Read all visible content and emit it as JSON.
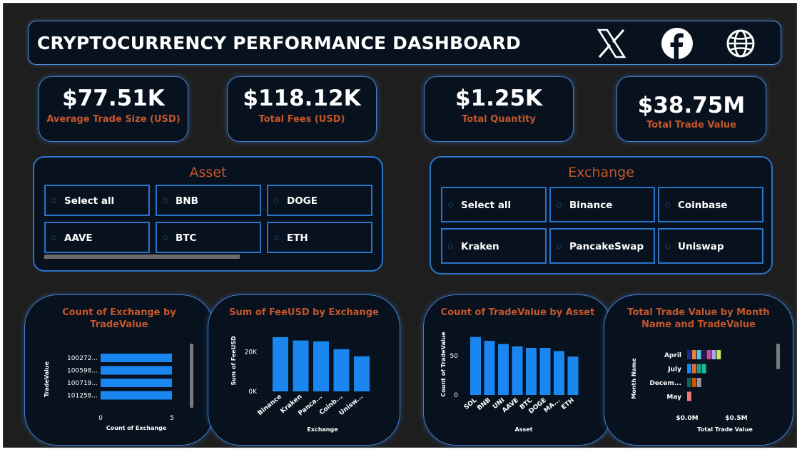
{
  "header": {
    "title": "CRYPTOCURRENCY PERFORMANCE DASHBOARD",
    "social_icons": [
      "x-icon",
      "facebook-icon",
      "globe-icon"
    ]
  },
  "kpis": [
    {
      "value": "$77.51K",
      "label": "Average Trade Size (USD)"
    },
    {
      "value": "$118.12K",
      "label": "Total Fees (USD)"
    },
    {
      "value": "$1.25K",
      "label": "Total Quantity"
    },
    {
      "value": "$38.75M",
      "label": "Total Trade Value"
    }
  ],
  "asset_slicer": {
    "title": "Asset",
    "options": [
      "Select all",
      "BNB",
      "DOGE",
      "AAVE",
      "BTC",
      "ETH"
    ]
  },
  "exchange_slicer": {
    "title": "Exchange",
    "options": [
      "Select all",
      "Binance",
      "Coinbase",
      "Kraken",
      "PancakeSwap",
      "Uniswap"
    ]
  },
  "colors": {
    "background": "#1e1e1e",
    "panel": "#07121e",
    "border": "#3f7fd6",
    "accent": "#c5562a",
    "bar": "#1a86f0"
  },
  "chart_data": [
    {
      "type": "bar",
      "orientation": "horizontal",
      "title": "Count of Exchange by TradeValue",
      "xlabel": "Count of Exchange",
      "ylabel": "TradeValue",
      "categories": [
        "100272...",
        "100598...",
        "100719...",
        "101258..."
      ],
      "values": [
        5,
        5,
        5,
        5
      ],
      "xlim": [
        0,
        5
      ],
      "x_ticks": [
        "0",
        "5"
      ]
    },
    {
      "type": "bar",
      "title": "Sum of FeeUSD by Exchange",
      "xlabel": "Exchange",
      "ylabel": "Sum of FeeUSD",
      "categories": [
        "Binance",
        "Kraken",
        "Panca...",
        "Coinb...",
        "Unisw..."
      ],
      "values": [
        27500,
        25800,
        25400,
        21400,
        17800
      ],
      "ylim": [
        0,
        30000
      ],
      "y_ticks": [
        {
          "value": 0,
          "label": "0K"
        },
        {
          "value": 20000,
          "label": "20K"
        }
      ]
    },
    {
      "type": "bar",
      "title": "Count of TradeValue by Asset",
      "xlabel": "Asset",
      "ylabel": "Count of TradeValue",
      "categories": [
        "SOL",
        "BNB",
        "UNI",
        "AAVE",
        "BTC",
        "DOGE",
        "MA...",
        "ETH"
      ],
      "values": [
        74,
        69,
        65,
        62,
        60,
        60,
        56,
        49
      ],
      "ylim": [
        0,
        80
      ],
      "y_ticks": [
        {
          "value": 0,
          "label": "0"
        },
        {
          "value": 50,
          "label": "50"
        }
      ]
    },
    {
      "type": "bar",
      "orientation": "horizontal",
      "stacked": true,
      "title": "Total Trade Value by Month Name and TradeValue",
      "xlabel": "Total Trade Value",
      "ylabel": "Month Name",
      "categories": [
        "April",
        "July",
        "Decem...",
        "May"
      ],
      "segments": [
        [
          0.05,
          0.05,
          0.05,
          0.05,
          0.05,
          0.05,
          0.05
        ],
        [
          0.05,
          0.05,
          0.05,
          0.05
        ],
        [
          0.05,
          0.05,
          0.05
        ],
        [
          0.05
        ]
      ],
      "segment_colors": [
        [
          "#1e2a8a",
          "#e8833c",
          "#4fc3e8",
          "#2e1a4a",
          "#c04fa0",
          "#a8a8ef",
          "#c8e85a"
        ],
        [
          "#1a86f0",
          "#e06b2e",
          "#16a085",
          "#1abc9c"
        ],
        [
          "#0e6655",
          "#d35400",
          "#999999"
        ],
        [
          "#f07878"
        ]
      ],
      "xlim": [
        0,
        0.5
      ],
      "x_ticks": [
        {
          "value": 0,
          "label": "$0.0M"
        },
        {
          "value": 0.5,
          "label": "$0.5M"
        }
      ]
    }
  ]
}
